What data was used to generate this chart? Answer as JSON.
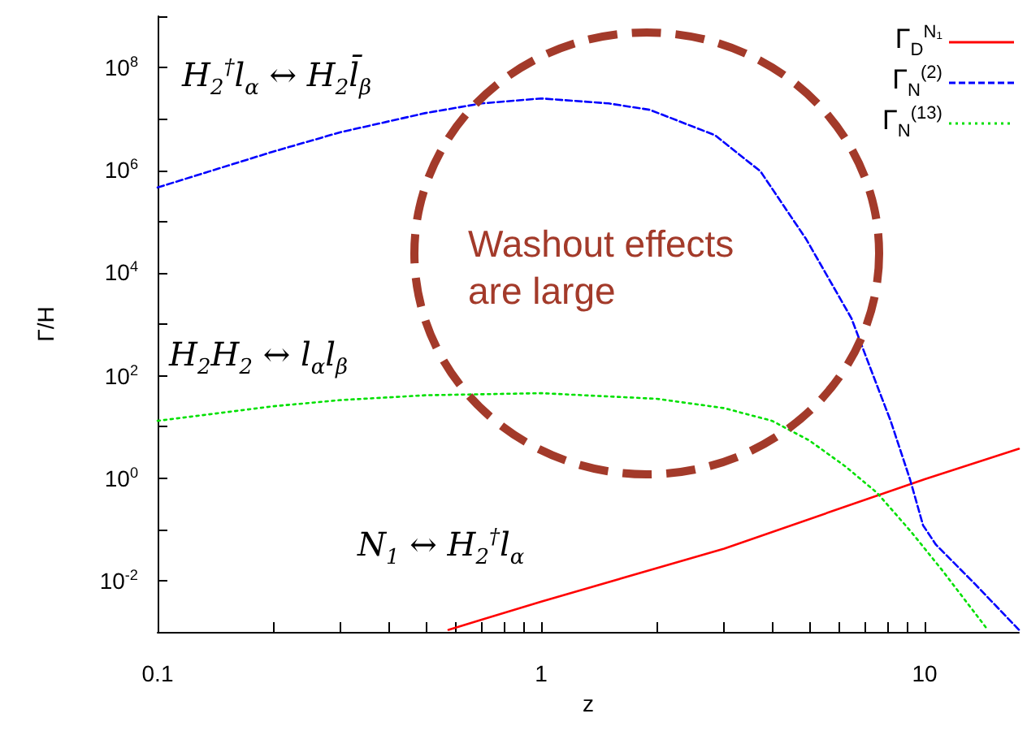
{
  "chart_data": {
    "type": "line",
    "xlabel": "z",
    "ylabel": "Γ/H",
    "log": "xy",
    "grid": false,
    "legend": "top right",
    "marker": "none",
    "xlim": [
      0.1,
      17.6
    ],
    "ylim": [
      0.001,
      1000000000
    ],
    "xticks": [
      0.1,
      {
        "value": 0.2,
        "label": null
      },
      {
        "value": 0.3,
        "label": null
      },
      {
        "value": 0.4,
        "label": null
      },
      {
        "value": 0.5,
        "label": null
      },
      {
        "value": 0.6,
        "label": null
      },
      {
        "value": 0.7,
        "label": null
      },
      {
        "value": 0.8,
        "label": null
      },
      {
        "value": 0.9,
        "label": null
      },
      1,
      {
        "value": 2,
        "label": null
      },
      {
        "value": 3,
        "label": null
      },
      {
        "value": 4,
        "label": null
      },
      {
        "value": 5,
        "label": null
      },
      {
        "value": 6,
        "label": null
      },
      {
        "value": 7,
        "label": null
      },
      {
        "value": 8,
        "label": null
      },
      {
        "value": 9,
        "label": null
      },
      10
    ],
    "yticks": [
      {
        "value": 0.001,
        "label": null
      },
      {
        "value": 0.01,
        "label": "10$^{-2}$"
      },
      {
        "value": 0.1,
        "label": null
      },
      {
        "value": 1,
        "label": "10$^{0}$"
      },
      {
        "value": 10,
        "label": null
      },
      {
        "value": 100,
        "label": "10$^{2}$"
      },
      {
        "value": 1000,
        "label": null
      },
      {
        "value": 10000,
        "label": "10$^{4}$"
      },
      {
        "value": 100000,
        "label": null
      },
      {
        "value": 1000000,
        "label": "10$^{6}$"
      },
      {
        "value": 10000000,
        "label": null
      },
      {
        "value": 100000000,
        "label": "10$^{8}$"
      },
      {
        "value": 1000000000,
        "label": null
      }
    ],
    "annotations": [
      "H$_{2}$$^{†}$l$_{α}$ ↔ H$_{2}$l̄$_{β}$",
      "H$_{2}$H$_{2}$ ↔ l$_{α}$l$_{β}$",
      "N$_{1}$ ↔ H$_{2}$$^{†}$l$_{α}$",
      "Washout effects\nare large"
    ],
    "series": [
      {
        "name": "Γ$_{D}$$^{N₁}$",
        "color": "#ff0000",
        "line_style": "solid",
        "x": [
          0.573,
          1,
          3,
          10,
          17.6
        ],
        "values": [
          0.0011,
          0.0039,
          0.042,
          0.95,
          3.7
        ]
      },
      {
        "name": "Γ$_{N}$$^{(2)}$",
        "color": "#0000ff",
        "line_style": "dashed",
        "x": [
          0.1,
          0.2,
          0.3,
          0.5,
          0.7,
          1,
          1.5,
          1.92,
          2.84,
          3.73,
          4.91,
          6.44,
          7.24,
          8.15,
          9.16,
          9.9,
          10.7,
          13.5,
          17.6
        ],
        "values": [
          460000,
          2300000,
          5500000,
          13000000,
          20000000,
          25000000,
          20000000,
          15000000,
          4800000,
          950000,
          45000,
          1300,
          130,
          13,
          0.93,
          0.12,
          0.05,
          0.0087,
          0.0011
        ]
      },
      {
        "name": "Γ$_{N}$$^{(13)}$",
        "color": "#00e000",
        "line_style": "dotted",
        "x": [
          0.1,
          0.2,
          0.3,
          0.5,
          1,
          2,
          3,
          4,
          5,
          6.2,
          7.5,
          9.2,
          11.1,
          14.6
        ],
        "values": [
          13,
          25,
          33,
          41,
          45,
          35,
          23,
          13,
          5.4,
          1.7,
          0.52,
          0.091,
          0.016,
          0.0011
        ]
      }
    ]
  }
}
